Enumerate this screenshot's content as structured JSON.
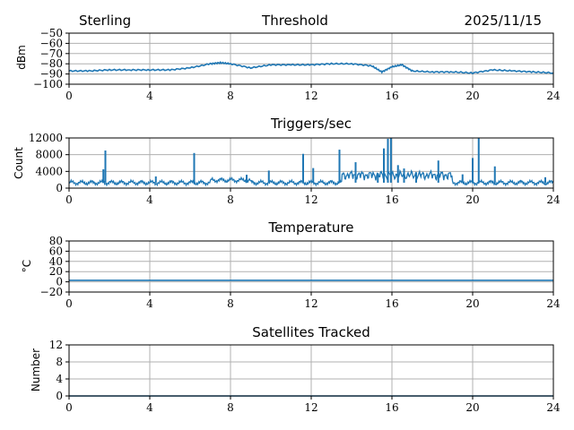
{
  "header": {
    "station": "Sterling",
    "date": "2025/11/15"
  },
  "colors": {
    "line": "#1f77b4",
    "grid": "#b0b0b0",
    "axis": "#000000"
  },
  "chart_data": [
    {
      "type": "line",
      "title": "Threshold",
      "xlabel": "",
      "ylabel": "dBm",
      "xlim": [
        0,
        24
      ],
      "ylim": [
        -100,
        -50
      ],
      "xticks": [
        "0",
        "4",
        "8",
        "12",
        "16",
        "20",
        "24"
      ],
      "yticks": [
        "−50",
        "−60",
        "−70",
        "−80",
        "−90",
        "−100"
      ],
      "x": [
        0,
        1,
        2,
        3,
        4,
        5,
        6,
        7,
        7.5,
        8,
        9,
        10,
        11,
        12,
        13,
        14,
        15,
        15.5,
        16,
        16.5,
        17,
        18,
        19,
        20,
        21,
        22,
        23,
        24
      ],
      "values": [
        -87,
        -87,
        -86,
        -86,
        -86,
        -86,
        -84,
        -80,
        -79,
        -80,
        -84,
        -81,
        -81,
        -81,
        -80,
        -80,
        -82,
        -88,
        -83,
        -81,
        -87,
        -88,
        -88,
        -89,
        -86,
        -87,
        -88,
        -89
      ]
    },
    {
      "type": "line",
      "title": "Triggers/sec",
      "xlabel": "",
      "ylabel": "Count",
      "xlim": [
        0,
        24
      ],
      "ylim": [
        0,
        12000
      ],
      "xticks": [
        "0",
        "4",
        "8",
        "12",
        "16",
        "20",
        "24"
      ],
      "yticks": [
        "12000",
        "8000",
        "4000",
        "0"
      ],
      "baseline": 1300,
      "spikes": [
        {
          "x": 1.8,
          "y": 9000
        },
        {
          "x": 1.7,
          "y": 4500
        },
        {
          "x": 4.3,
          "y": 2800
        },
        {
          "x": 6.2,
          "y": 8400
        },
        {
          "x": 8.8,
          "y": 3200
        },
        {
          "x": 9.9,
          "y": 4200
        },
        {
          "x": 11.6,
          "y": 8200
        },
        {
          "x": 12.1,
          "y": 4800
        },
        {
          "x": 13.4,
          "y": 9200
        },
        {
          "x": 14.2,
          "y": 6200
        },
        {
          "x": 15.3,
          "y": 3600
        },
        {
          "x": 15.6,
          "y": 9500
        },
        {
          "x": 15.8,
          "y": 11800
        },
        {
          "x": 15.95,
          "y": 12000
        },
        {
          "x": 16.3,
          "y": 5500
        },
        {
          "x": 16.6,
          "y": 4700
        },
        {
          "x": 17.2,
          "y": 3800
        },
        {
          "x": 18.3,
          "y": 6600
        },
        {
          "x": 19.5,
          "y": 3300
        },
        {
          "x": 20.0,
          "y": 7200
        },
        {
          "x": 20.3,
          "y": 12000
        },
        {
          "x": 21.1,
          "y": 5200
        },
        {
          "x": 23.6,
          "y": 2600
        }
      ]
    },
    {
      "type": "line",
      "title": "Temperature",
      "xlabel": "",
      "ylabel": "°C",
      "xlim": [
        0,
        24
      ],
      "ylim": [
        -20,
        80
      ],
      "xticks": [
        "0",
        "4",
        "8",
        "12",
        "16",
        "20",
        "24"
      ],
      "yticks": [
        "80",
        "60",
        "40",
        "20",
        "0",
        "−20"
      ],
      "value": 3
    },
    {
      "type": "line",
      "title": "Satellites Tracked",
      "xlabel": "",
      "ylabel": "Number",
      "xlim": [
        0,
        24
      ],
      "ylim": [
        0,
        12
      ],
      "xticks": [
        "0",
        "4",
        "8",
        "12",
        "16",
        "20",
        "24"
      ],
      "yticks": [
        "12",
        "8",
        "4",
        "0"
      ],
      "value": 0
    }
  ]
}
